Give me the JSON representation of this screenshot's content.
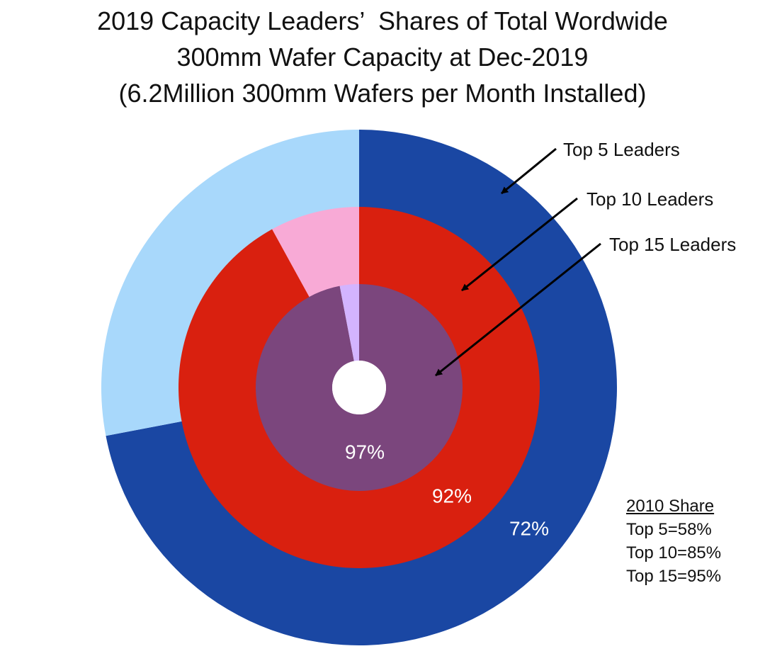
{
  "title": {
    "line1": "2019 Capacity Leaders’  Shares of Total Wordwide",
    "line2": "300mm Wafer Capacity at Dec-2019",
    "line3": "(6.2Million 300mm Wafers per Month Installed)"
  },
  "chart_data": {
    "type": "pie",
    "variant": "nested-donut",
    "title": "2019 Capacity Leaders’  Shares of Total Wordwide 300mm Wafer Capacity at Dec-2019 (6.2Million 300mm Wafers per Month Installed)",
    "start_angle": "12 o'clock",
    "direction": "clockwise",
    "rings": [
      {
        "callout": "Top 5 Leaders",
        "value": 72,
        "label": "72%",
        "color": "#1a47a3",
        "remainder_color": "#a8d8fb"
      },
      {
        "callout": "Top 10 Leaders",
        "value": 92,
        "label": "92%",
        "color": "#d9200f",
        "remainder_color": "#f8aad6"
      },
      {
        "callout": "Top 15 Leaders",
        "value": 97,
        "label": "97%",
        "color": "#7b467d",
        "remainder_color": "#d3b4ff"
      }
    ],
    "annotation": {
      "heading": "2010 Share",
      "lines": [
        "Top 5=58%",
        "Top 10=85%",
        "Top 15=95%"
      ]
    }
  }
}
